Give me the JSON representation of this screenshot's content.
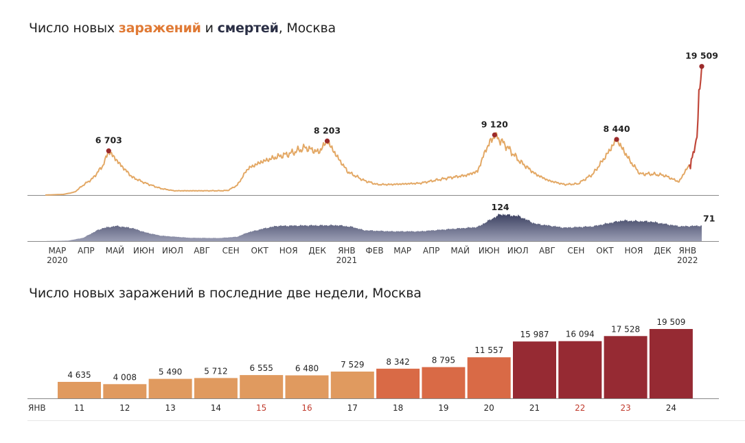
{
  "chart_data": [
    {
      "type": "area",
      "title_parts": [
        {
          "text": "Число новых ",
          "style": "normal"
        },
        {
          "text": "заражений",
          "style": "orange"
        },
        {
          "text": " и ",
          "style": "normal"
        },
        {
          "text": "смертей",
          "style": "dark"
        },
        {
          "text": ", Москва",
          "style": "normal"
        }
      ],
      "x_ticks": [
        {
          "label": "МАР",
          "sub": "2020"
        },
        {
          "label": "АПР",
          "sub": ""
        },
        {
          "label": "МАЙ",
          "sub": ""
        },
        {
          "label": "ИЮН",
          "sub": ""
        },
        {
          "label": "ИЮЛ",
          "sub": ""
        },
        {
          "label": "АВГ",
          "sub": ""
        },
        {
          "label": "СЕН",
          "sub": ""
        },
        {
          "label": "ОКТ",
          "sub": ""
        },
        {
          "label": "НОЯ",
          "sub": ""
        },
        {
          "label": "ДЕК",
          "sub": ""
        },
        {
          "label": "ЯНВ",
          "sub": "2021"
        },
        {
          "label": "ФЕВ",
          "sub": ""
        },
        {
          "label": "МАР",
          "sub": ""
        },
        {
          "label": "АПР",
          "sub": ""
        },
        {
          "label": "МАЙ",
          "sub": ""
        },
        {
          "label": "ИЮН",
          "sub": ""
        },
        {
          "label": "ИЮЛ",
          "sub": ""
        },
        {
          "label": "АВГ",
          "sub": ""
        },
        {
          "label": "СЕН",
          "sub": ""
        },
        {
          "label": "ОКТ",
          "sub": ""
        },
        {
          "label": "НОЯ",
          "sub": ""
        },
        {
          "label": "ДЕК",
          "sub": ""
        },
        {
          "label": "ЯНВ",
          "sub": "2022"
        }
      ],
      "series": [
        {
          "key": "infections",
          "color": "#e3a865",
          "peak_color": "#9b2a2a",
          "x_start": "2020-03-01",
          "x_end": "2022-01-24",
          "anchors": [
            [
              "2020-03-01",
              0
            ],
            [
              "2020-03-20",
              100
            ],
            [
              "2020-04-01",
              450
            ],
            [
              "2020-04-10",
              1500
            ],
            [
              "2020-04-20",
              2500
            ],
            [
              "2020-05-01",
              4500
            ],
            [
              "2020-05-07",
              6703
            ],
            [
              "2020-05-20",
              4500
            ],
            [
              "2020-06-01",
              2700
            ],
            [
              "2020-06-15",
              1800
            ],
            [
              "2020-07-01",
              1000
            ],
            [
              "2020-07-15",
              650
            ],
            [
              "2020-08-01",
              650
            ],
            [
              "2020-09-01",
              650
            ],
            [
              "2020-09-10",
              700
            ],
            [
              "2020-09-20",
              1500
            ],
            [
              "2020-10-01",
              4000
            ],
            [
              "2020-10-15",
              5000
            ],
            [
              "2020-11-01",
              5800
            ],
            [
              "2020-11-15",
              6300
            ],
            [
              "2020-12-01",
              7200
            ],
            [
              "2020-12-15",
              6500
            ],
            [
              "2020-12-24",
              8203
            ],
            [
              "2021-01-05",
              5500
            ],
            [
              "2021-01-15",
              3500
            ],
            [
              "2021-02-01",
              2200
            ],
            [
              "2021-02-15",
              1600
            ],
            [
              "2021-03-01",
              1600
            ],
            [
              "2021-04-01",
              1800
            ],
            [
              "2021-05-01",
              2600
            ],
            [
              "2021-05-20",
              3000
            ],
            [
              "2021-06-01",
              3600
            ],
            [
              "2021-06-10",
              7000
            ],
            [
              "2021-06-19",
              9120
            ],
            [
              "2021-07-01",
              7500
            ],
            [
              "2021-07-15",
              5200
            ],
            [
              "2021-08-01",
              3200
            ],
            [
              "2021-08-15",
              2200
            ],
            [
              "2021-09-01",
              1600
            ],
            [
              "2021-09-15",
              1700
            ],
            [
              "2021-10-01",
              3200
            ],
            [
              "2021-10-15",
              6000
            ],
            [
              "2021-10-26",
              8440
            ],
            [
              "2021-11-10",
              5000
            ],
            [
              "2021-11-20",
              3200
            ],
            [
              "2021-12-01",
              3200
            ],
            [
              "2021-12-15",
              3000
            ],
            [
              "2021-12-31",
              2000
            ],
            [
              "2022-01-06",
              3500
            ],
            [
              "2022-01-11",
              4635
            ],
            [
              "2022-01-12",
              4008
            ],
            [
              "2022-01-13",
              5490
            ],
            [
              "2022-01-14",
              5712
            ],
            [
              "2022-01-15",
              6555
            ],
            [
              "2022-01-16",
              6480
            ],
            [
              "2022-01-17",
              7529
            ],
            [
              "2022-01-18",
              8342
            ],
            [
              "2022-01-19",
              8795
            ],
            [
              "2022-01-20",
              11557
            ],
            [
              "2022-01-21",
              15987
            ],
            [
              "2022-01-22",
              16094
            ],
            [
              "2022-01-23",
              17528
            ],
            [
              "2022-01-24",
              19509
            ]
          ],
          "peaks": [
            {
              "date": "2020-05-07",
              "label": "6 703"
            },
            {
              "date": "2020-12-24",
              "label": "8 203"
            },
            {
              "date": "2021-06-19",
              "label": "9 120"
            },
            {
              "date": "2021-10-26",
              "label": "8 440"
            },
            {
              "date": "2022-01-24",
              "label": "19 509"
            }
          ],
          "ylim": [
            0,
            20000
          ]
        },
        {
          "key": "deaths",
          "color": "#3b4060",
          "color_light": "#9a9db4",
          "anchors": [
            [
              "2020-03-01",
              0
            ],
            [
              "2020-03-25",
              2
            ],
            [
              "2020-04-10",
              15
            ],
            [
              "2020-04-25",
              50
            ],
            [
              "2020-05-01",
              60
            ],
            [
              "2020-05-15",
              70
            ],
            [
              "2020-06-01",
              60
            ],
            [
              "2020-06-15",
              40
            ],
            [
              "2020-07-01",
              25
            ],
            [
              "2020-08-01",
              15
            ],
            [
              "2020-09-01",
              14
            ],
            [
              "2020-09-20",
              20
            ],
            [
              "2020-10-01",
              40
            ],
            [
              "2020-10-20",
              60
            ],
            [
              "2020-11-01",
              70
            ],
            [
              "2020-12-01",
              72
            ],
            [
              "2021-01-05",
              73
            ],
            [
              "2021-01-20",
              65
            ],
            [
              "2021-02-01",
              50
            ],
            [
              "2021-03-01",
              45
            ],
            [
              "2021-04-01",
              45
            ],
            [
              "2021-05-01",
              55
            ],
            [
              "2021-06-01",
              65
            ],
            [
              "2021-06-15",
              100
            ],
            [
              "2021-06-25",
              124
            ],
            [
              "2021-07-15",
              115
            ],
            [
              "2021-08-01",
              80
            ],
            [
              "2021-09-01",
              62
            ],
            [
              "2021-10-01",
              68
            ],
            [
              "2021-10-20",
              85
            ],
            [
              "2021-11-01",
              95
            ],
            [
              "2021-12-01",
              90
            ],
            [
              "2022-01-01",
              68
            ],
            [
              "2022-01-24",
              71
            ]
          ],
          "peaks": [
            {
              "date": "2021-06-25",
              "label": "124"
            },
            {
              "date": "2022-01-24",
              "label": "71"
            }
          ],
          "ylim": [
            0,
            130
          ]
        }
      ]
    },
    {
      "type": "bar",
      "title": "Число новых заражений в последние две недели, Москва",
      "month_label": "ЯНВ",
      "categories": [
        "11",
        "12",
        "13",
        "14",
        "15",
        "16",
        "17",
        "18",
        "19",
        "20",
        "21",
        "22",
        "23",
        "24"
      ],
      "category_colors": [
        "#222",
        "#222",
        "#222",
        "#222",
        "#c0392b",
        "#c0392b",
        "#222",
        "#222",
        "#222",
        "#222",
        "#222",
        "#c0392b",
        "#c0392b",
        "#222"
      ],
      "values": [
        4635,
        4008,
        5490,
        5712,
        6555,
        6480,
        7529,
        8342,
        8795,
        11557,
        15987,
        16094,
        17528,
        19509
      ],
      "labels": [
        "4 635",
        "4 008",
        "5 490",
        "5 712",
        "6 555",
        "6 480",
        "7 529",
        "8 342",
        "8 795",
        "11 557",
        "15 987",
        "16 094",
        "17 528",
        "19 509"
      ],
      "bar_colors": [
        "#e09a5f",
        "#e09a5f",
        "#e09a5f",
        "#e09a5f",
        "#e09a5f",
        "#e09a5f",
        "#e09a5f",
        "#d96a46",
        "#d96a46",
        "#d96a46",
        "#962a33",
        "#962a33",
        "#962a33",
        "#962a33"
      ],
      "ylim": [
        0,
        20000
      ]
    }
  ]
}
